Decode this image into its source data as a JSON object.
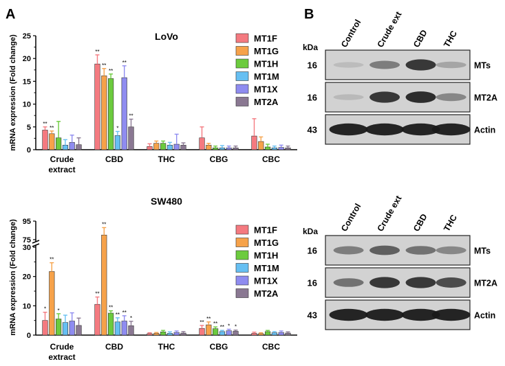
{
  "panel_labels": {
    "A": "A",
    "B": "B"
  },
  "colors": {
    "MT1F": "#f47a80",
    "MT1G": "#f6a24a",
    "MT1H": "#6ccb3e",
    "MT1M": "#66bff2",
    "MT1X": "#8f8cf0",
    "MT2A": "#8a7892"
  },
  "chart_data": [
    {
      "type": "bar",
      "title": "LoVo",
      "ylabel": "mRNA expression (Fold change)",
      "ylim": [
        0,
        25
      ],
      "yticks": [
        "0",
        "5",
        "10",
        "15",
        "20",
        "25"
      ],
      "categories": [
        "Crude extract",
        "CBD",
        "THC",
        "CBG",
        "CBC"
      ],
      "category_lines": [
        [
          "Crude",
          "extract"
        ],
        [
          "CBD"
        ],
        [
          "THC"
        ],
        [
          "CBG"
        ],
        [
          "CBC"
        ]
      ],
      "legend_position": "top-right",
      "series": [
        {
          "name": "MT1F",
          "values": [
            4.3,
            18.8,
            0.7,
            2.6,
            3.0
          ],
          "errors": [
            0.7,
            2.0,
            0.6,
            2.4,
            3.8
          ],
          "sig": [
            "**",
            "**",
            "",
            "",
            ""
          ]
        },
        {
          "name": "MT1G",
          "values": [
            3.5,
            16.2,
            1.4,
            1.0,
            1.8
          ],
          "errors": [
            0.6,
            1.6,
            0.5,
            0.4,
            1.0
          ],
          "sig": [
            "**",
            "**",
            "",
            "",
            ""
          ]
        },
        {
          "name": "MT1H",
          "values": [
            2.6,
            15.6,
            1.4,
            0.4,
            0.6
          ],
          "errors": [
            3.6,
            1.0,
            0.5,
            0.4,
            0.6
          ],
          "sig": [
            "",
            "**",
            "",
            "",
            ""
          ]
        },
        {
          "name": "MT1M",
          "values": [
            1.0,
            3.1,
            1.0,
            0.4,
            0.4
          ],
          "errors": [
            1.2,
            0.9,
            0.6,
            0.5,
            0.4
          ],
          "sig": [
            "",
            "*",
            "",
            "",
            ""
          ]
        },
        {
          "name": "MT1X",
          "values": [
            1.6,
            15.8,
            1.2,
            0.4,
            0.5
          ],
          "errors": [
            1.6,
            2.6,
            2.2,
            0.4,
            0.5
          ],
          "sig": [
            "",
            "**",
            "",
            "",
            ""
          ]
        },
        {
          "name": "MT2A",
          "values": [
            1.1,
            5.0,
            1.0,
            0.4,
            0.4
          ],
          "errors": [
            1.5,
            1.7,
            0.5,
            0.4,
            0.4
          ],
          "sig": [
            "",
            "**",
            "",
            "",
            ""
          ]
        }
      ]
    },
    {
      "type": "bar",
      "title": "SW480",
      "ylabel": "mRNA expression (Fold change)",
      "ylim": [
        0,
        30
      ],
      "y_break": {
        "lower_max": 30,
        "upper": [
          75,
          95
        ]
      },
      "yticks": [
        "0",
        "10",
        "20",
        "30",
        "75",
        "95"
      ],
      "categories": [
        "Crude extract",
        "CBD",
        "THC",
        "CBG",
        "CBC"
      ],
      "category_lines": [
        [
          "Crude",
          "extract"
        ],
        [
          "CBD"
        ],
        [
          "THC"
        ],
        [
          "CBG"
        ],
        [
          "CBC"
        ]
      ],
      "legend_position": "top-right",
      "series": [
        {
          "name": "MT1F",
          "values": [
            5.0,
            10.5,
            0.5,
            2.3,
            0.6
          ],
          "errors": [
            2.8,
            2.5,
            0.3,
            1.0,
            0.4
          ],
          "sig": [
            "*",
            "**",
            "",
            "**",
            ""
          ]
        },
        {
          "name": "MT1G",
          "values": [
            21.7,
            80.0,
            0.6,
            3.5,
            0.5
          ],
          "errors": [
            3.0,
            8.0,
            0.3,
            1.0,
            0.3
          ],
          "sig": [
            "**",
            "**",
            "",
            "**",
            ""
          ]
        },
        {
          "name": "MT1H",
          "values": [
            5.5,
            7.5,
            1.1,
            2.2,
            1.2
          ],
          "errors": [
            1.8,
            0.8,
            0.5,
            0.6,
            0.4
          ],
          "sig": [
            "*",
            "**",
            "",
            "**",
            ""
          ]
        },
        {
          "name": "MT1M",
          "values": [
            4.3,
            4.5,
            0.6,
            1.2,
            0.8
          ],
          "errors": [
            2.5,
            1.4,
            0.5,
            0.4,
            0.4
          ],
          "sig": [
            "",
            "**",
            "",
            "**",
            ""
          ]
        },
        {
          "name": "MT1X",
          "values": [
            4.8,
            4.8,
            0.9,
            1.5,
            0.9
          ],
          "errors": [
            2.8,
            1.8,
            0.5,
            0.5,
            0.5
          ],
          "sig": [
            "",
            "**",
            "",
            "*",
            ""
          ]
        },
        {
          "name": "MT2A",
          "values": [
            3.3,
            3.2,
            0.7,
            1.3,
            0.7
          ],
          "errors": [
            2.5,
            1.5,
            0.5,
            0.4,
            0.4
          ],
          "sig": [
            "",
            "*",
            "",
            "*",
            ""
          ]
        }
      ]
    }
  ],
  "blots": [
    {
      "lanes": [
        "Control",
        "Crude ext",
        "CBD",
        "THC"
      ],
      "kda_label": "kDa",
      "rows": [
        {
          "kda": "16",
          "label": "MTs",
          "intensities": [
            0.18,
            0.5,
            0.85,
            0.3
          ]
        },
        {
          "kda": "16",
          "label": "MT2A",
          "intensities": [
            0.2,
            0.85,
            0.9,
            0.45
          ]
        },
        {
          "kda": "43",
          "label": "Actin",
          "intensities": [
            0.95,
            0.95,
            0.95,
            0.95
          ]
        }
      ]
    },
    {
      "lanes": [
        "Control",
        "Crude ext",
        "CBD",
        "THC"
      ],
      "kda_label": "kDa",
      "rows": [
        {
          "kda": "16",
          "label": "MTs",
          "intensities": [
            0.5,
            0.65,
            0.55,
            0.45
          ]
        },
        {
          "kda": "16",
          "label": "MT2A",
          "intensities": [
            0.55,
            0.85,
            0.85,
            0.75
          ]
        },
        {
          "kda": "43",
          "label": "Actin",
          "intensities": [
            0.95,
            0.95,
            0.95,
            0.95
          ]
        }
      ]
    }
  ]
}
